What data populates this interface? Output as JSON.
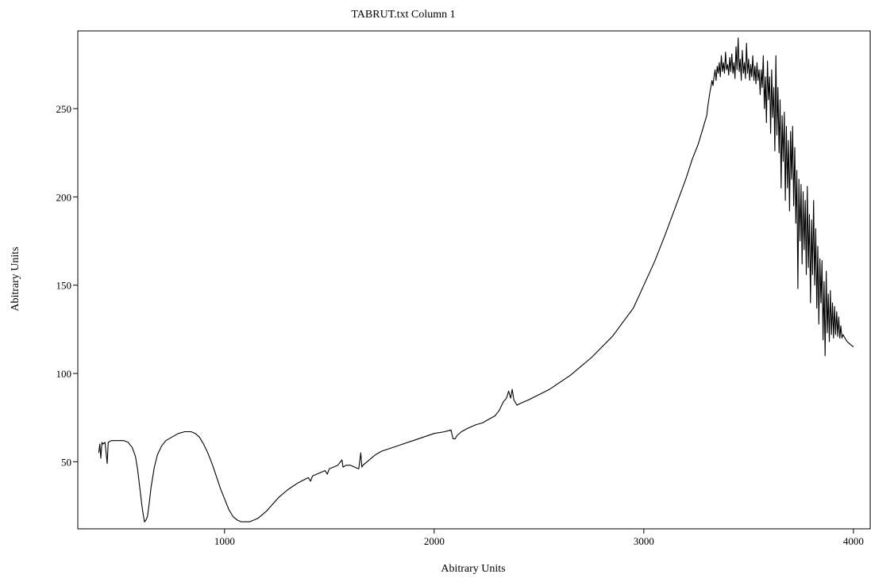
{
  "chart_data": {
    "type": "line",
    "title": "TABRUT.txt Column 1",
    "xlabel": "Abitrary Units",
    "ylabel": "Abitrary Units",
    "xlim": [
      300,
      4080
    ],
    "ylim": [
      12,
      294
    ],
    "xticks": [
      1000,
      2000,
      3000,
      4000
    ],
    "yticks": [
      50,
      100,
      150,
      200,
      250
    ],
    "grid": false,
    "legend": "none",
    "series": [
      {
        "color": "#000000",
        "points": [
          [
            400,
            55
          ],
          [
            405,
            60
          ],
          [
            410,
            52
          ],
          [
            415,
            61
          ],
          [
            420,
            60
          ],
          [
            430,
            61
          ],
          [
            440,
            49
          ],
          [
            445,
            61
          ],
          [
            460,
            62
          ],
          [
            480,
            62
          ],
          [
            500,
            62
          ],
          [
            520,
            62
          ],
          [
            540,
            61
          ],
          [
            560,
            58
          ],
          [
            575,
            53
          ],
          [
            585,
            46
          ],
          [
            595,
            36
          ],
          [
            605,
            26
          ],
          [
            612,
            20
          ],
          [
            618,
            16
          ],
          [
            625,
            17
          ],
          [
            632,
            19
          ],
          [
            640,
            26
          ],
          [
            650,
            36
          ],
          [
            665,
            47
          ],
          [
            680,
            54
          ],
          [
            700,
            59
          ],
          [
            720,
            62
          ],
          [
            750,
            64
          ],
          [
            780,
            66
          ],
          [
            810,
            67
          ],
          [
            840,
            67
          ],
          [
            860,
            66
          ],
          [
            880,
            64
          ],
          [
            900,
            60
          ],
          [
            920,
            55
          ],
          [
            940,
            49
          ],
          [
            960,
            42
          ],
          [
            980,
            35
          ],
          [
            1000,
            29
          ],
          [
            1020,
            23
          ],
          [
            1040,
            19
          ],
          [
            1060,
            17
          ],
          [
            1080,
            16
          ],
          [
            1100,
            16
          ],
          [
            1120,
            16
          ],
          [
            1140,
            17
          ],
          [
            1160,
            18
          ],
          [
            1180,
            20
          ],
          [
            1200,
            22
          ],
          [
            1230,
            26
          ],
          [
            1260,
            30
          ],
          [
            1300,
            34
          ],
          [
            1350,
            38
          ],
          [
            1400,
            41
          ],
          [
            1410,
            39
          ],
          [
            1420,
            42
          ],
          [
            1440,
            43
          ],
          [
            1460,
            44
          ],
          [
            1480,
            45
          ],
          [
            1490,
            43
          ],
          [
            1500,
            46
          ],
          [
            1520,
            47
          ],
          [
            1540,
            48
          ],
          [
            1560,
            51
          ],
          [
            1565,
            47
          ],
          [
            1580,
            48
          ],
          [
            1600,
            48
          ],
          [
            1620,
            47
          ],
          [
            1640,
            46
          ],
          [
            1650,
            55
          ],
          [
            1655,
            47
          ],
          [
            1660,
            48
          ],
          [
            1680,
            50
          ],
          [
            1700,
            52
          ],
          [
            1720,
            54
          ],
          [
            1750,
            56
          ],
          [
            1800,
            58
          ],
          [
            1850,
            60
          ],
          [
            1900,
            62
          ],
          [
            1950,
            64
          ],
          [
            2000,
            66
          ],
          [
            2050,
            67
          ],
          [
            2080,
            68
          ],
          [
            2090,
            63
          ],
          [
            2100,
            63
          ],
          [
            2110,
            65
          ],
          [
            2130,
            67
          ],
          [
            2160,
            69
          ],
          [
            2200,
            71
          ],
          [
            2230,
            72
          ],
          [
            2260,
            74
          ],
          [
            2290,
            76
          ],
          [
            2310,
            79
          ],
          [
            2330,
            84
          ],
          [
            2345,
            86
          ],
          [
            2355,
            90
          ],
          [
            2365,
            86
          ],
          [
            2372,
            91
          ],
          [
            2380,
            85
          ],
          [
            2395,
            82
          ],
          [
            2410,
            83
          ],
          [
            2450,
            85
          ],
          [
            2500,
            88
          ],
          [
            2550,
            91
          ],
          [
            2600,
            95
          ],
          [
            2650,
            99
          ],
          [
            2700,
            104
          ],
          [
            2750,
            109
          ],
          [
            2800,
            115
          ],
          [
            2850,
            121
          ],
          [
            2900,
            129
          ],
          [
            2950,
            137
          ],
          [
            3000,
            150
          ],
          [
            3050,
            163
          ],
          [
            3100,
            178
          ],
          [
            3150,
            194
          ],
          [
            3200,
            210
          ],
          [
            3230,
            221
          ],
          [
            3260,
            230
          ],
          [
            3280,
            238
          ],
          [
            3290,
            242
          ],
          [
            3300,
            246
          ],
          [
            3305,
            251
          ],
          [
            3310,
            255
          ],
          [
            3315,
            259
          ],
          [
            3320,
            262
          ],
          [
            3325,
            266
          ],
          [
            3330,
            263
          ],
          [
            3335,
            268
          ],
          [
            3340,
            272
          ],
          [
            3345,
            266
          ],
          [
            3350,
            274
          ],
          [
            3355,
            270
          ],
          [
            3360,
            276
          ],
          [
            3365,
            268
          ],
          [
            3370,
            280
          ],
          [
            3375,
            271
          ],
          [
            3380,
            276
          ],
          [
            3385,
            270
          ],
          [
            3390,
            282
          ],
          [
            3395,
            272
          ],
          [
            3400,
            275
          ],
          [
            3405,
            269
          ],
          [
            3410,
            279
          ],
          [
            3415,
            271
          ],
          [
            3420,
            281
          ],
          [
            3425,
            270
          ],
          [
            3430,
            276
          ],
          [
            3435,
            267
          ],
          [
            3440,
            285
          ],
          [
            3445,
            272
          ],
          [
            3450,
            290
          ],
          [
            3455,
            271
          ],
          [
            3460,
            278
          ],
          [
            3465,
            266
          ],
          [
            3470,
            283
          ],
          [
            3475,
            270
          ],
          [
            3480,
            276
          ],
          [
            3485,
            267
          ],
          [
            3490,
            287
          ],
          [
            3495,
            270
          ],
          [
            3500,
            278
          ],
          [
            3505,
            266
          ],
          [
            3510,
            275
          ],
          [
            3515,
            268
          ],
          [
            3520,
            280
          ],
          [
            3525,
            266
          ],
          [
            3530,
            274
          ],
          [
            3535,
            264
          ],
          [
            3540,
            276
          ],
          [
            3545,
            266
          ],
          [
            3550,
            272
          ],
          [
            3555,
            258
          ],
          [
            3560,
            272
          ],
          [
            3565,
            262
          ],
          [
            3570,
            280
          ],
          [
            3575,
            250
          ],
          [
            3580,
            268
          ],
          [
            3585,
            242
          ],
          [
            3590,
            277
          ],
          [
            3595,
            255
          ],
          [
            3600,
            268
          ],
          [
            3605,
            236
          ],
          [
            3610,
            272
          ],
          [
            3615,
            245
          ],
          [
            3620,
            262
          ],
          [
            3625,
            226
          ],
          [
            3630,
            280
          ],
          [
            3635,
            235
          ],
          [
            3640,
            262
          ],
          [
            3645,
            225
          ],
          [
            3650,
            255
          ],
          [
            3655,
            205
          ],
          [
            3660,
            246
          ],
          [
            3665,
            220
          ],
          [
            3670,
            248
          ],
          [
            3675,
            198
          ],
          [
            3680,
            240
          ],
          [
            3685,
            205
          ],
          [
            3690,
            232
          ],
          [
            3695,
            192
          ],
          [
            3700,
            237
          ],
          [
            3705,
            210
          ],
          [
            3710,
            240
          ],
          [
            3715,
            195
          ],
          [
            3720,
            228
          ],
          [
            3725,
            185
          ],
          [
            3730,
            215
          ],
          [
            3735,
            148
          ],
          [
            3740,
            210
          ],
          [
            3745,
            175
          ],
          [
            3750,
            207
          ],
          [
            3755,
            162
          ],
          [
            3760,
            203
          ],
          [
            3765,
            170
          ],
          [
            3770,
            198
          ],
          [
            3775,
            156
          ],
          [
            3780,
            206
          ],
          [
            3785,
            160
          ],
          [
            3790,
            190
          ],
          [
            3795,
            140
          ],
          [
            3800,
            187
          ],
          [
            3805,
            156
          ],
          [
            3810,
            198
          ],
          [
            3815,
            150
          ],
          [
            3820,
            182
          ],
          [
            3825,
            137
          ],
          [
            3830,
            172
          ],
          [
            3835,
            128
          ],
          [
            3840,
            165
          ],
          [
            3845,
            140
          ],
          [
            3850,
            164
          ],
          [
            3855,
            119
          ],
          [
            3860,
            152
          ],
          [
            3865,
            110
          ],
          [
            3870,
            158
          ],
          [
            3875,
            123
          ],
          [
            3880,
            145
          ],
          [
            3885,
            118
          ],
          [
            3890,
            147
          ],
          [
            3895,
            122
          ],
          [
            3900,
            140
          ],
          [
            3905,
            120
          ],
          [
            3910,
            138
          ],
          [
            3915,
            122
          ],
          [
            3920,
            135
          ],
          [
            3925,
            121
          ],
          [
            3930,
            132
          ],
          [
            3935,
            120
          ],
          [
            3940,
            127
          ],
          [
            3945,
            120
          ],
          [
            3950,
            122
          ],
          [
            3960,
            120
          ],
          [
            3970,
            118
          ],
          [
            3980,
            117
          ],
          [
            3990,
            116
          ],
          [
            4000,
            115
          ]
        ]
      }
    ]
  }
}
